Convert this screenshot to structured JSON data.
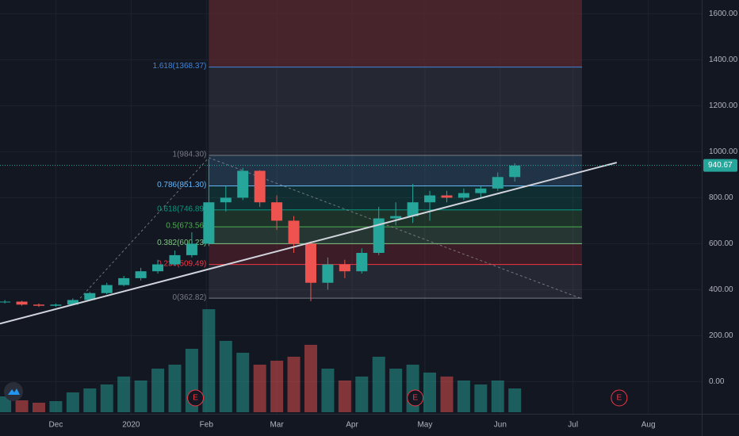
{
  "chart_data": {
    "type": "candlestick",
    "xlim": [
      -23,
      266
    ],
    "ylim": [
      -140,
      1660
    ],
    "xticks": [
      {
        "value": 0,
        "label": "Dec"
      },
      {
        "value": 31,
        "label": "2020"
      },
      {
        "value": 62,
        "label": "Feb"
      },
      {
        "value": 91,
        "label": "Mar"
      },
      {
        "value": 122,
        "label": "Apr"
      },
      {
        "value": 152,
        "label": "May"
      },
      {
        "value": 183,
        "label": "Jun"
      },
      {
        "value": 213,
        "label": "Jul"
      },
      {
        "value": 244,
        "label": "Aug"
      }
    ],
    "yticks": [
      {
        "value": 0,
        "label": "0.00"
      },
      {
        "value": 200,
        "label": "200.00"
      },
      {
        "value": 400,
        "label": "400.00"
      },
      {
        "value": 600,
        "label": "600.00"
      },
      {
        "value": 800,
        "label": "800.00"
      },
      {
        "value": 1000,
        "label": "1000.00"
      },
      {
        "value": 1200,
        "label": "1200.00"
      },
      {
        "value": 1400,
        "label": "1400.00"
      },
      {
        "value": 1600,
        "label": "1600.00"
      }
    ],
    "grid": true,
    "up_color": "#26a69a",
    "down_color": "#ef5350",
    "x": [
      -21,
      -14,
      -7,
      0,
      7,
      14,
      21,
      28,
      35,
      42,
      49,
      56,
      63,
      70,
      77,
      84,
      91,
      98,
      105,
      112,
      119,
      126,
      133,
      140,
      147,
      154,
      161,
      168,
      175,
      182,
      189
    ],
    "open": [
      345,
      348,
      335,
      330,
      335,
      355,
      385,
      420,
      450,
      480,
      510,
      550,
      600,
      780,
      800,
      917,
      780,
      700,
      600,
      430,
      510,
      480,
      560,
      710,
      720,
      780,
      810,
      800,
      820,
      840,
      890
    ],
    "close": [
      348,
      335,
      330,
      335,
      355,
      385,
      420,
      450,
      480,
      510,
      550,
      600,
      780,
      800,
      917,
      780,
      700,
      600,
      430,
      510,
      480,
      560,
      710,
      720,
      780,
      810,
      800,
      820,
      840,
      890,
      940
    ],
    "high": [
      355,
      352,
      340,
      340,
      362,
      390,
      430,
      460,
      495,
      530,
      570,
      650,
      968,
      850,
      930,
      920,
      810,
      720,
      610,
      540,
      530,
      580,
      760,
      780,
      860,
      830,
      830,
      840,
      850,
      910,
      950
    ],
    "low": [
      340,
      330,
      325,
      325,
      333,
      352,
      380,
      415,
      440,
      470,
      505,
      540,
      590,
      740,
      790,
      760,
      660,
      560,
      350,
      400,
      450,
      470,
      550,
      680,
      690,
      700,
      780,
      790,
      800,
      830,
      870
    ],
    "volume": [
      20,
      15,
      12,
      14,
      25,
      30,
      35,
      45,
      40,
      55,
      60,
      80,
      130,
      90,
      75,
      60,
      65,
      70,
      85,
      55,
      40,
      45,
      70,
      55,
      60,
      50,
      45,
      40,
      35,
      40,
      30
    ],
    "vlim": [
      0,
      140
    ],
    "fib": {
      "x": [
        63,
        216.7
      ],
      "top_color": "#5a2a30",
      "levels": [
        {
          "label": "1.618(1368.37)",
          "value": 1368.37,
          "color": "#3f83d6"
        },
        {
          "label": "1(984.30)",
          "value": 984.3,
          "color": "#787b86"
        },
        {
          "label": "0.786(851.30)",
          "value": 851.3,
          "color": "#64b5f6"
        },
        {
          "label": "0.618(746.89)",
          "value": 746.89,
          "color": "#089981"
        },
        {
          "label": "0.5(673.56)",
          "value": 673.56,
          "color": "#4caf50"
        },
        {
          "label": "0.382(600.23)",
          "value": 600.23,
          "color": "#81c784"
        },
        {
          "label": "0.236(509.49)",
          "value": 509.49,
          "color": "#f23645"
        },
        {
          "label": "0(362.82)",
          "value": 362.82,
          "color": "#787b86"
        }
      ]
    },
    "trendline": {
      "x": [
        -23,
        231
      ],
      "y": [
        252,
        953
      ]
    },
    "fib_anchor": {
      "x": [
        10,
        63,
        216.7
      ],
      "y": [
        363,
        974,
        360
      ]
    },
    "last_price": 940.67,
    "events": [
      {
        "label": "E",
        "x": 57.5
      },
      {
        "label": "E",
        "x": 148
      },
      {
        "label": "E",
        "x": 232
      }
    ]
  }
}
